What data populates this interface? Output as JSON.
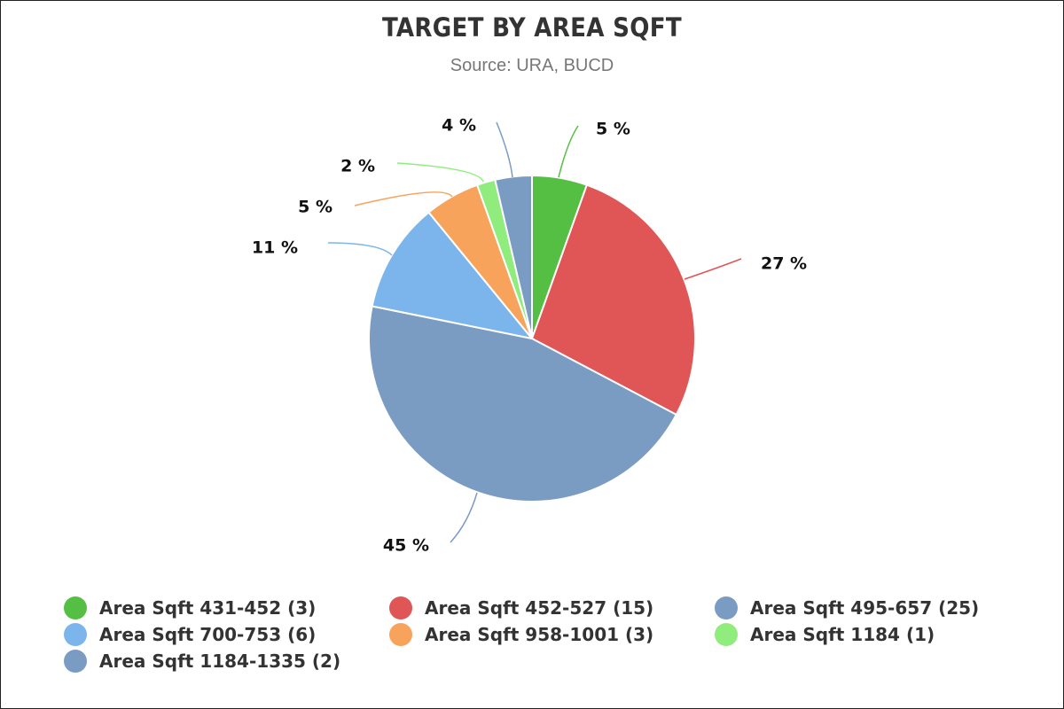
{
  "chart_data": {
    "type": "pie",
    "title": "TARGET BY AREA SQFT",
    "subtitle": "Source: URA, BUCD",
    "categories": [
      "Area Sqft 431-452 (3)",
      "Area Sqft 452-527 (15)",
      "Area Sqft 495-657 (25)",
      "Area Sqft 700-753 (6)",
      "Area Sqft 958-1001 (3)",
      "Area Sqft 1184 (1)",
      "Area Sqft 1184-1335 (2)"
    ],
    "values": [
      3,
      15,
      25,
      6,
      3,
      1,
      2
    ],
    "data_labels": [
      "5 %",
      "27 %",
      "45 %",
      "11 %",
      "5 %",
      "2 %",
      "4 %"
    ],
    "colors": [
      "#54bf42",
      "#e05555",
      "#7a9bc2",
      "#7cb5ec",
      "#f7a35c",
      "#90ed7d",
      "#7a9bc2"
    ],
    "legend_position": "bottom",
    "start_angle": "12 o'clock, clockwise"
  }
}
